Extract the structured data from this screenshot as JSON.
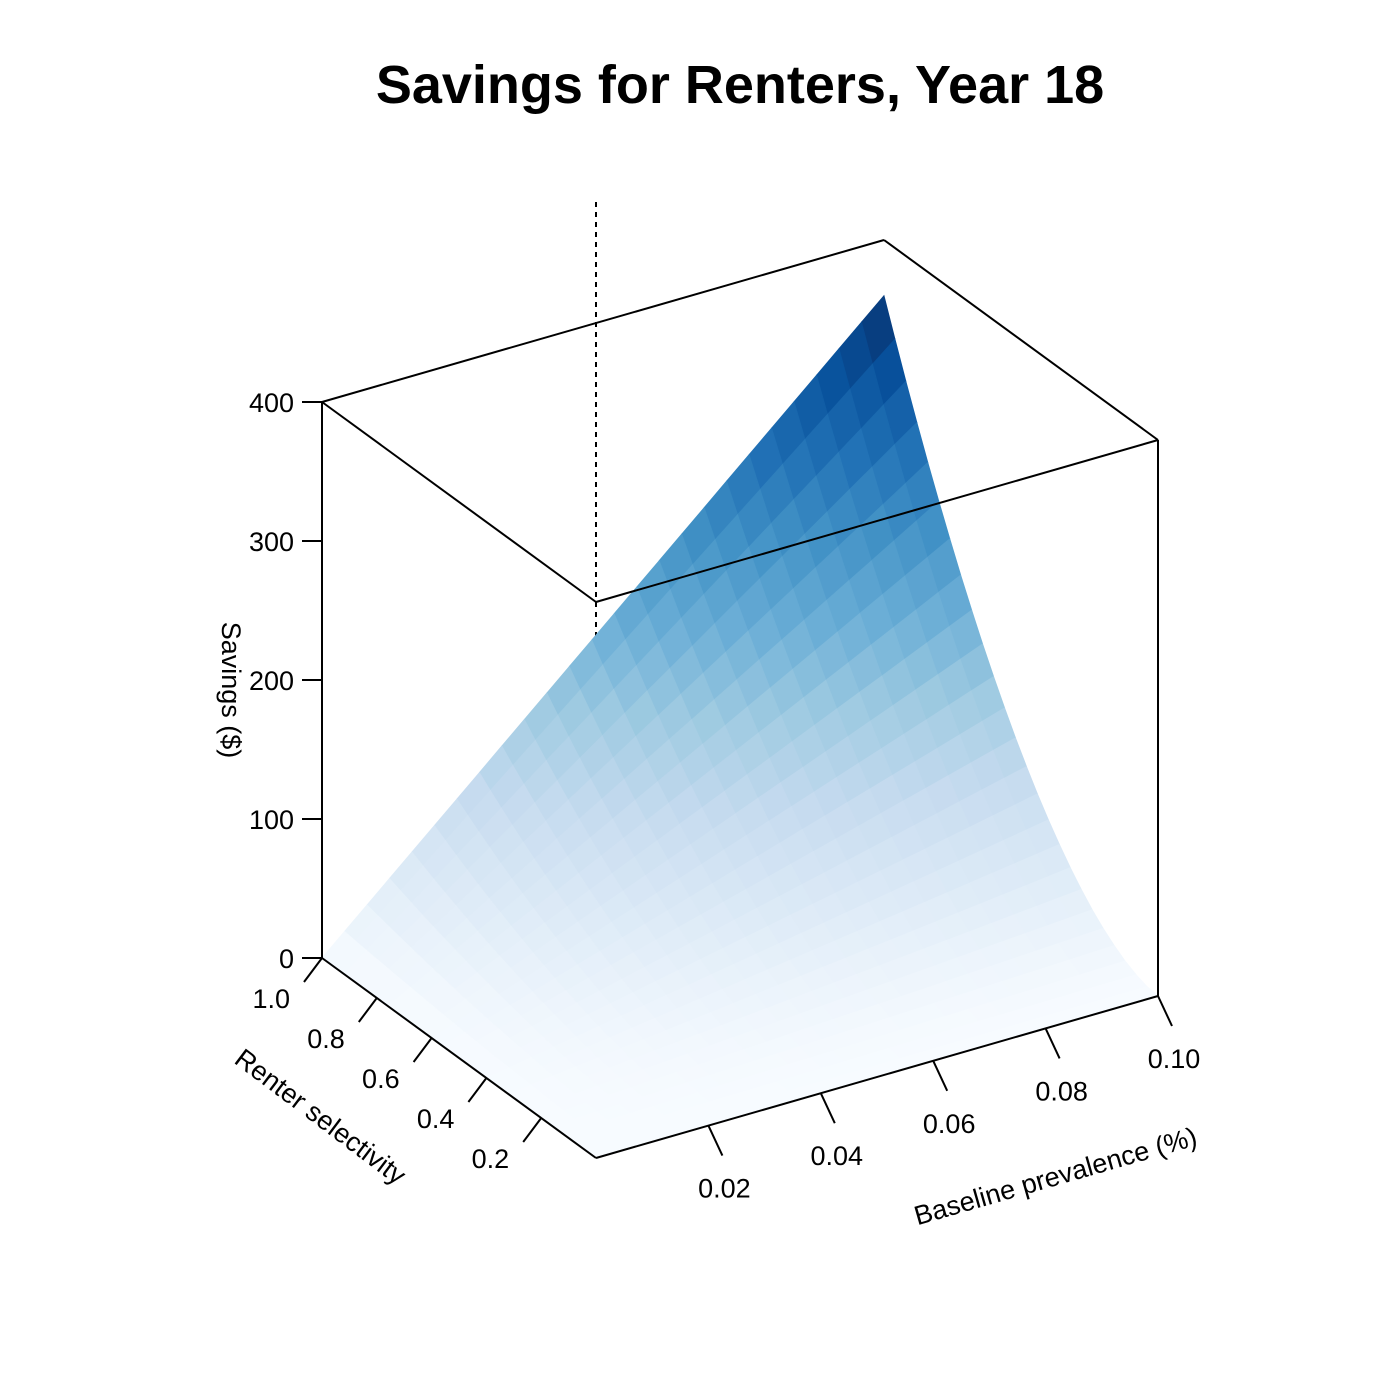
{
  "chart_data": {
    "type": "surface3d",
    "title": "Savings for Renters, Year 18",
    "x_axis": {
      "label": "Baseline prevalence (%)",
      "range": [
        0.0,
        0.1
      ],
      "ticks": [
        0.02,
        0.04,
        0.06,
        0.08,
        0.1
      ],
      "tick_labels": [
        "0.02",
        "0.04",
        "0.06",
        "0.08",
        "0.10"
      ]
    },
    "y_axis": {
      "label": "Renter selectivity",
      "range": [
        0.0,
        1.0
      ],
      "ticks": [
        0.2,
        0.4,
        0.6,
        0.8,
        1.0
      ],
      "tick_labels": [
        "0.2",
        "0.4",
        "0.6",
        "0.8",
        "1.0"
      ]
    },
    "z_axis": {
      "label": "Savings ($)",
      "range": [
        0,
        400
      ],
      "ticks": [
        0,
        100,
        200,
        300,
        400
      ],
      "tick_labels": [
        "0",
        "100",
        "200",
        "300",
        "400"
      ]
    },
    "surface": {
      "description_of_shape": "Savings rise with both baseline prevalence and renter selectivity; peak at prevalence 0.10, selectivity 1.0",
      "corner_values": {
        "prev_0.00_sel_0.0": 0,
        "prev_0.00_sel_1.0": 0,
        "prev_0.10_sel_0.0": 0,
        "prev_0.10_sel_1.0": 360
      },
      "colormap": [
        "#f7fbff",
        "#deebf7",
        "#c6dbef",
        "#9ecae1",
        "#6baed6",
        "#4292c6",
        "#2171b5",
        "#08519c",
        "#08306b"
      ]
    }
  }
}
